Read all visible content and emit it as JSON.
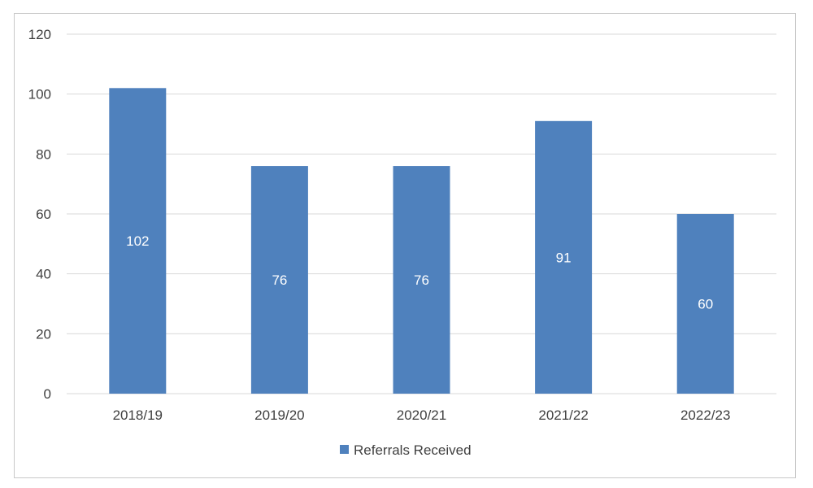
{
  "chart_data": {
    "type": "bar",
    "categories": [
      "2018/19",
      "2019/20",
      "2020/21",
      "2021/22",
      "2022/23"
    ],
    "series": [
      {
        "name": "Referrals Received",
        "values": [
          102,
          76,
          76,
          91,
          60
        ],
        "color": "#4f81bd"
      }
    ],
    "data_labels": [
      "102",
      "76",
      "76",
      "91",
      "60"
    ],
    "ylim": [
      0,
      120
    ],
    "yticks": [
      "0",
      "20",
      "40",
      "60",
      "80",
      "100",
      "120"
    ],
    "grid": true,
    "legend_position": "bottom"
  },
  "colors": {
    "bar": "#4f81bd",
    "grid": "#d9d9d9",
    "text": "#404040",
    "data_label": "#ffffff"
  }
}
